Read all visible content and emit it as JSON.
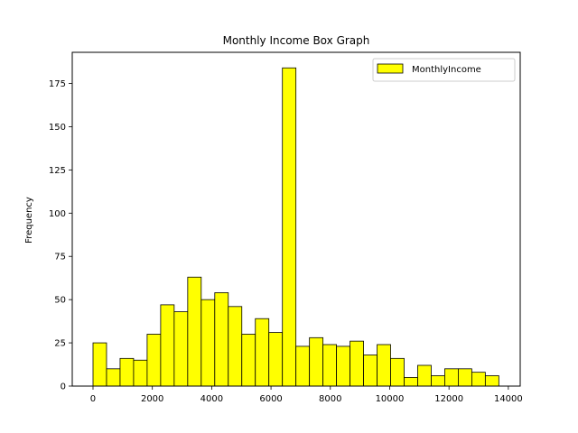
{
  "chart_data": {
    "type": "bar",
    "title": "Monthly Income Box Graph",
    "xlabel": "",
    "ylabel": "Frequency",
    "xlim": [
      -700,
      14400
    ],
    "ylim": [
      0,
      193
    ],
    "x_ticks": [
      0,
      2000,
      4000,
      6000,
      8000,
      10000,
      12000,
      14000
    ],
    "y_ticks": [
      0,
      25,
      50,
      75,
      100,
      125,
      150,
      175
    ],
    "bar_color": "#ffff00",
    "edge_color": "#000000",
    "legend_position": "top-right",
    "series": [
      {
        "name": "MonthlyIncome",
        "bin_start": 0,
        "bin_width": 456,
        "values": [
          25,
          10,
          16,
          15,
          30,
          47,
          43,
          63,
          50,
          54,
          46,
          30,
          39,
          31,
          184,
          23,
          28,
          24,
          23,
          26,
          18,
          24,
          16,
          5,
          12,
          6,
          10,
          10,
          8,
          6
        ]
      }
    ]
  }
}
